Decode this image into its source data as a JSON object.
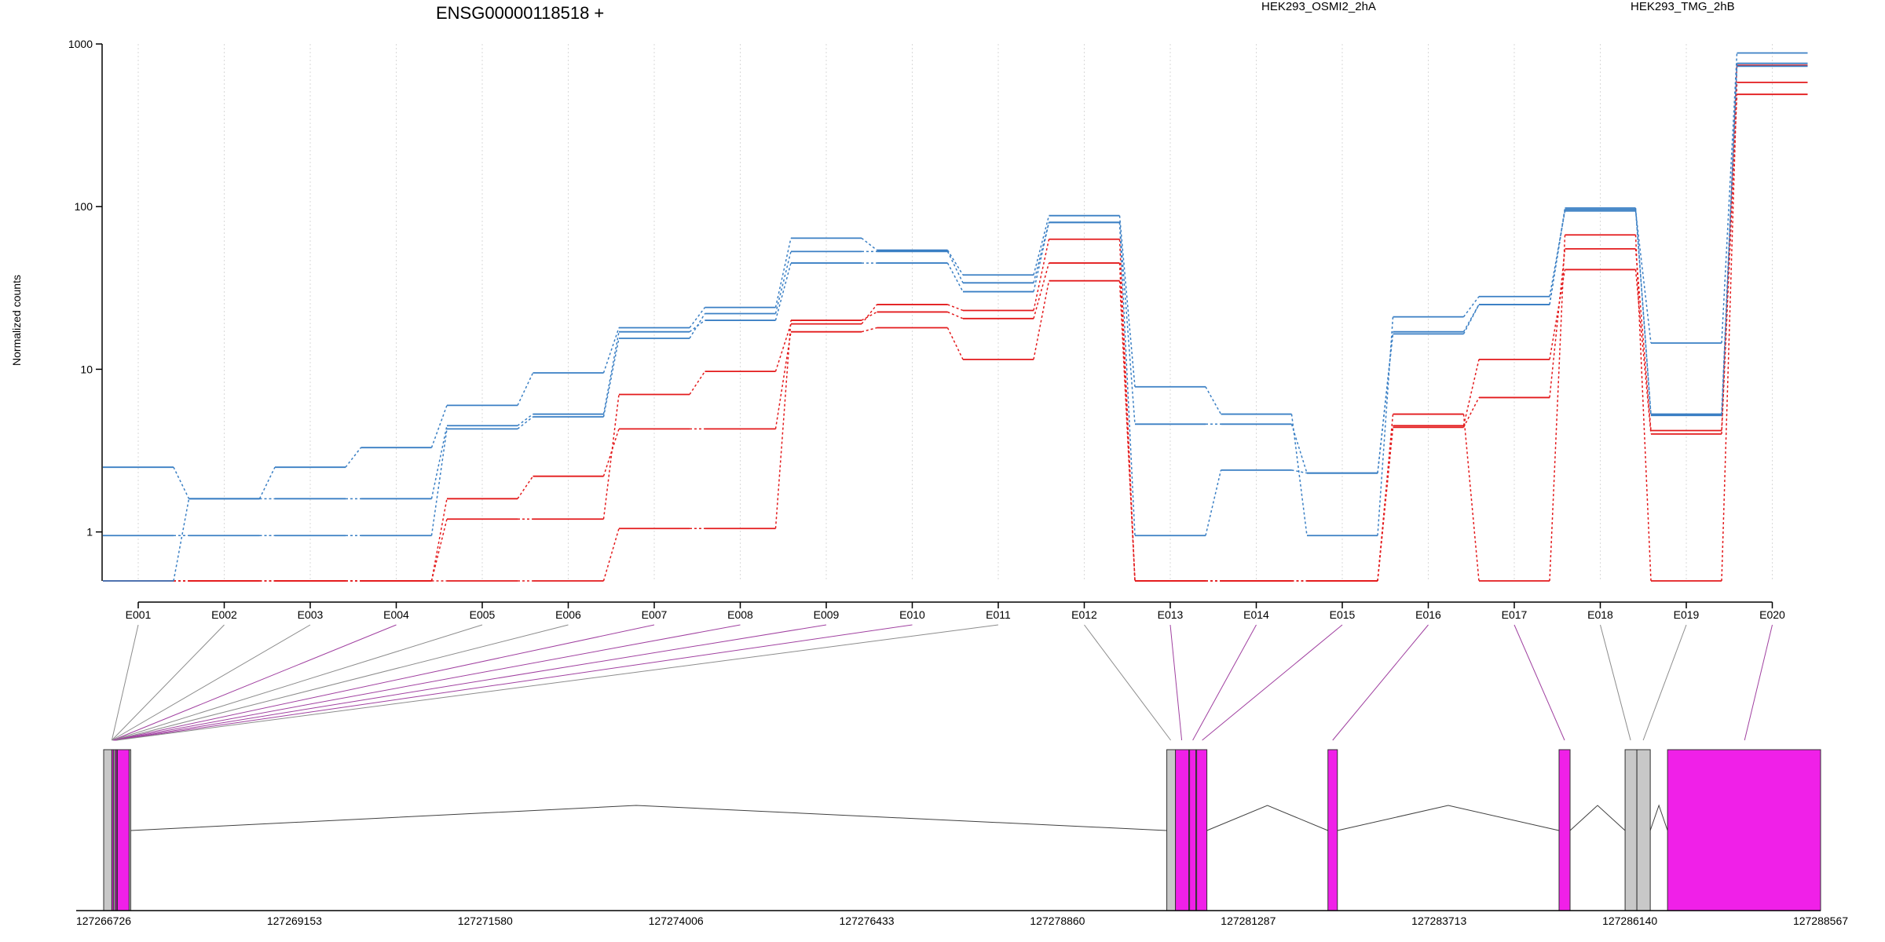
{
  "chart_data": {
    "type": "line",
    "title": "ENSG00000118518 +",
    "ylabel": "Normalized counts",
    "y_scale": "log",
    "ylim": [
      0.5,
      1000
    ],
    "y_ticks": [
      1,
      10,
      100,
      1000
    ],
    "y_tick_labels": [
      "1",
      "10",
      "100",
      "1000"
    ],
    "grid": "vertical dotted lines at each exon",
    "legend_placement": "top",
    "categories": [
      "E001",
      "E002",
      "E003",
      "E004",
      "E005",
      "E006",
      "E007",
      "E008",
      "E009",
      "E010",
      "E011",
      "E012",
      "E013",
      "E014",
      "E015",
      "E016",
      "E017",
      "E018",
      "E019",
      "E020"
    ],
    "legend": [
      {
        "label": "HEK293_OSMI2_2hA",
        "color": "#e31a1c"
      },
      {
        "label": "HEK293_TMG_2hB",
        "color": "#3a7fc4"
      }
    ],
    "series": [
      {
        "group": 0,
        "values": [
          0.5,
          0.5,
          0.5,
          0.5,
          1.6,
          2.2,
          4.3,
          4.3,
          17,
          18,
          11.5,
          35,
          0.5,
          0.5,
          0.5,
          4.5,
          11.5,
          41,
          4,
          490
        ]
      },
      {
        "group": 0,
        "values": [
          0.5,
          0.5,
          0.5,
          0.5,
          1.2,
          1.2,
          7,
          9.7,
          19,
          25,
          23,
          63,
          0.5,
          0.5,
          0.5,
          5.3,
          0.5,
          67,
          0.5,
          580
        ]
      },
      {
        "group": 0,
        "values": [
          0.5,
          0.5,
          0.5,
          0.5,
          0.5,
          0.5,
          1.05,
          1.05,
          20,
          22.5,
          20.5,
          45,
          0.5,
          0.5,
          0.5,
          4.4,
          6.7,
          55,
          4.2,
          740
        ]
      },
      {
        "group": 1,
        "values": [
          2.5,
          1.6,
          1.6,
          1.6,
          4.5,
          5.3,
          17,
          20,
          45,
          45,
          30,
          80,
          0.95,
          2.4,
          2.3,
          16.5,
          25,
          96,
          5.2,
          730
        ]
      },
      {
        "group": 1,
        "values": [
          0.95,
          0.95,
          0.95,
          0.95,
          4.3,
          5.1,
          15.5,
          22,
          53,
          53,
          34,
          80,
          4.6,
          4.6,
          2.3,
          17,
          25,
          98,
          5.3,
          760
        ]
      },
      {
        "group": 1,
        "values": [
          0.5,
          1.6,
          2.5,
          3.3,
          6,
          9.5,
          18,
          24,
          64,
          54,
          38,
          88,
          7.8,
          5.3,
          0.95,
          21,
          28,
          94,
          14.5,
          880
        ]
      }
    ],
    "gene_model": {
      "coordinate_labels": [
        "127266726",
        "127269153",
        "127271580",
        "127274006",
        "127276433",
        "127278860",
        "127281287",
        "127283713",
        "127286140",
        "127288567"
      ],
      "genome_range": [
        127266726,
        127288567
      ],
      "exon_colors": {
        "tested": "#f020e8",
        "not_tested": "#c8c8c8"
      },
      "blocks": [
        {
          "start": 127266726,
          "end": 127266830,
          "type": "not_tested"
        },
        {
          "start": 127266830,
          "end": 127266850,
          "type": "tested"
        },
        {
          "start": 127266850,
          "end": 127266870,
          "type": "not_tested"
        },
        {
          "start": 127266870,
          "end": 127266890,
          "type": "tested"
        },
        {
          "start": 127266890,
          "end": 127266900,
          "type": "not_tested"
        },
        {
          "start": 127266900,
          "end": 127267050,
          "type": "tested"
        },
        {
          "start": 127267050,
          "end": 127267070,
          "type": "not_tested"
        },
        {
          "start": 127280250,
          "end": 127280360,
          "type": "not_tested"
        },
        {
          "start": 127280360,
          "end": 127280530,
          "type": "tested"
        },
        {
          "start": 127280530,
          "end": 127280540,
          "type": "not_tested"
        },
        {
          "start": 127280540,
          "end": 127280620,
          "type": "tested"
        },
        {
          "start": 127280620,
          "end": 127280630,
          "type": "not_tested"
        },
        {
          "start": 127280630,
          "end": 127280760,
          "type": "tested"
        },
        {
          "start": 127282300,
          "end": 127282420,
          "type": "tested"
        },
        {
          "start": 127285240,
          "end": 127285380,
          "type": "tested"
        },
        {
          "start": 127286080,
          "end": 127286230,
          "type": "not_tested"
        },
        {
          "start": 127286230,
          "end": 127286400,
          "type": "not_tested"
        },
        {
          "start": 127286620,
          "end": 127288567,
          "type": "tested"
        }
      ],
      "introns": [
        [
          127267070,
          127280250,
          127273500
        ],
        [
          127280760,
          127282300,
          127281530
        ],
        [
          127282420,
          127285240,
          127283830
        ],
        [
          127285380,
          127286080,
          127285730
        ],
        [
          127286400,
          127286620,
          127286510
        ]
      ],
      "exon_links": [
        {
          "exon": "E001",
          "pos": 127266830,
          "type": "not_tested"
        },
        {
          "exon": "E002",
          "pos": 127266830,
          "type": "not_tested"
        },
        {
          "exon": "E003",
          "pos": 127266830,
          "type": "not_tested"
        },
        {
          "exon": "E004",
          "pos": 127266840,
          "type": "tested"
        },
        {
          "exon": "E005",
          "pos": 127266840,
          "type": "not_tested"
        },
        {
          "exon": "E006",
          "pos": 127266850,
          "type": "not_tested"
        },
        {
          "exon": "E007",
          "pos": 127266850,
          "type": "tested"
        },
        {
          "exon": "E008",
          "pos": 127266860,
          "type": "tested"
        },
        {
          "exon": "E009",
          "pos": 127266870,
          "type": "tested"
        },
        {
          "exon": "E010",
          "pos": 127266880,
          "type": "tested"
        },
        {
          "exon": "E011",
          "pos": 127266890,
          "type": "not_tested"
        },
        {
          "exon": "E012",
          "pos": 127280300,
          "type": "not_tested"
        },
        {
          "exon": "E013",
          "pos": 127280440,
          "type": "tested"
        },
        {
          "exon": "E014",
          "pos": 127280580,
          "type": "tested"
        },
        {
          "exon": "E015",
          "pos": 127280700,
          "type": "tested"
        },
        {
          "exon": "E016",
          "pos": 127282360,
          "type": "tested"
        },
        {
          "exon": "E017",
          "pos": 127285310,
          "type": "tested"
        },
        {
          "exon": "E018",
          "pos": 127286150,
          "type": "not_tested"
        },
        {
          "exon": "E019",
          "pos": 127286310,
          "type": "not_tested"
        },
        {
          "exon": "E020",
          "pos": 127287600,
          "type": "tested"
        }
      ]
    }
  }
}
